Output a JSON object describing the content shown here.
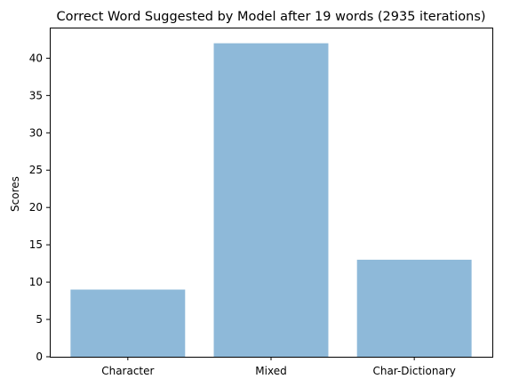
{
  "chart_data": {
    "type": "bar",
    "title": "Correct Word Suggested by Model after 19 words (2935 iterations)",
    "xlabel": "",
    "ylabel": "Scores",
    "categories": [
      "Character",
      "Mixed",
      "Char-Dictionary"
    ],
    "values": [
      9,
      42,
      13
    ],
    "ylim": [
      0,
      44.1
    ],
    "yticks": [
      0,
      5,
      10,
      15,
      20,
      25,
      30,
      35,
      40
    ],
    "grid": false,
    "bar_color": "#8eb9d9",
    "axis_color": "#000000"
  }
}
